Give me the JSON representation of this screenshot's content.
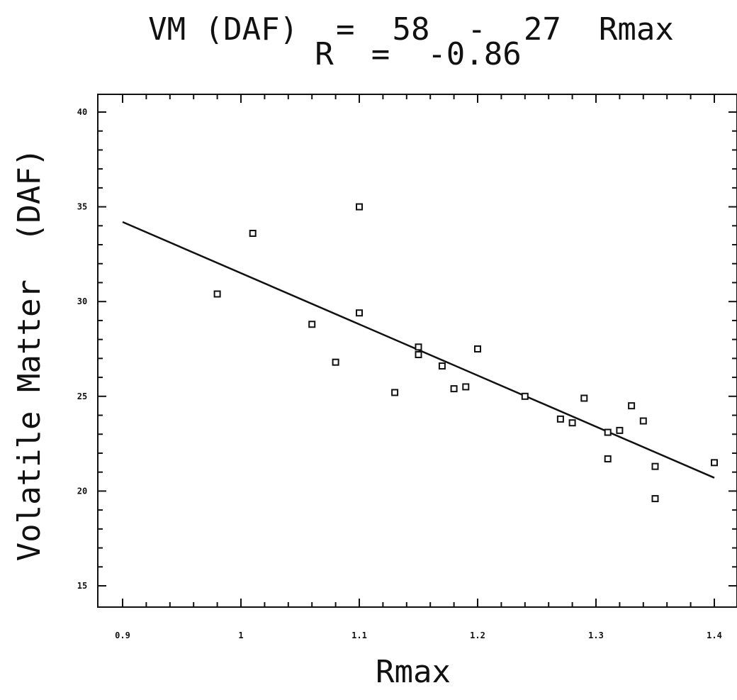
{
  "chart_data": {
    "type": "scatter",
    "title_line1": "VM (DAF)  =  58  -  27  Rmax",
    "title_line2": "R  =  -0.86",
    "xlabel": "Rmax",
    "ylabel": "Volatile Matter  (DAF)",
    "xlim": [
      0.9,
      1.4
    ],
    "ylim": [
      15,
      40
    ],
    "xticks": [
      0.9,
      1,
      1.1,
      1.2,
      1.3,
      1.4
    ],
    "xtick_labels": [
      "0.9",
      "1",
      "1.1",
      "1.2",
      "1.3",
      "1.4"
    ],
    "yticks": [
      15,
      20,
      25,
      30,
      35,
      40
    ],
    "ytick_labels": [
      "15",
      "20",
      "25",
      "30",
      "35",
      "40"
    ],
    "grid": false,
    "points": [
      {
        "x": 0.98,
        "y": 30.4
      },
      {
        "x": 1.01,
        "y": 33.6
      },
      {
        "x": 1.06,
        "y": 28.8
      },
      {
        "x": 1.08,
        "y": 26.8
      },
      {
        "x": 1.1,
        "y": 35.0
      },
      {
        "x": 1.1,
        "y": 29.4
      },
      {
        "x": 1.13,
        "y": 25.2
      },
      {
        "x": 1.15,
        "y": 27.6
      },
      {
        "x": 1.15,
        "y": 27.2
      },
      {
        "x": 1.17,
        "y": 26.6
      },
      {
        "x": 1.18,
        "y": 25.4
      },
      {
        "x": 1.19,
        "y": 25.5
      },
      {
        "x": 1.2,
        "y": 27.5
      },
      {
        "x": 1.24,
        "y": 25.0
      },
      {
        "x": 1.27,
        "y": 23.8
      },
      {
        "x": 1.28,
        "y": 23.6
      },
      {
        "x": 1.29,
        "y": 24.9
      },
      {
        "x": 1.31,
        "y": 23.1
      },
      {
        "x": 1.31,
        "y": 21.7
      },
      {
        "x": 1.32,
        "y": 23.2
      },
      {
        "x": 1.33,
        "y": 24.5
      },
      {
        "x": 1.34,
        "y": 23.7
      },
      {
        "x": 1.35,
        "y": 21.3
      },
      {
        "x": 1.35,
        "y": 19.6
      },
      {
        "x": 1.4,
        "y": 21.5
      }
    ],
    "fit_line": {
      "x": [
        0.9,
        1.4
      ],
      "y": [
        34.2,
        20.7
      ]
    }
  }
}
